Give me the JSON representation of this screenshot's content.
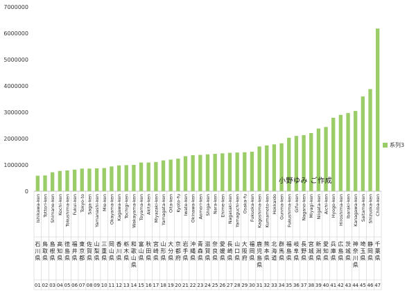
{
  "chart_data": {
    "type": "bar",
    "ylim": [
      0,
      7000000
    ],
    "yticks": [
      0,
      1000000,
      2000000,
      3000000,
      4000000,
      5000000,
      6000000,
      7000000
    ],
    "grid": false,
    "legend_position": "right",
    "series": [
      {
        "name": "系列3",
        "color": "#9acd68",
        "values": [
          590000,
          600000,
          720000,
          770000,
          790000,
          820000,
          860000,
          860000,
          870000,
          880000,
          940000,
          980000,
          990000,
          1000000,
          1090000,
          1090000,
          1110000,
          1170000,
          1200000,
          1240000,
          1330000,
          1370000,
          1380000,
          1400000,
          1420000,
          1440000,
          1460000,
          1470000,
          1480000,
          1500000,
          1700000,
          1740000,
          1780000,
          1820000,
          2030000,
          2100000,
          2130000,
          2210000,
          2380000,
          2440000,
          2790000,
          2900000,
          2970000,
          3050000,
          3600000,
          3880000,
          6180000
        ]
      }
    ],
    "categories": [
      "Ishikawa-ken",
      "Tottori-ken",
      "Shimane-ken",
      "Kochi-ken",
      "Tokushima-ken",
      "Fukui-ken",
      "Tokyo-to",
      "Saga-ken",
      "Yamanashi-ken",
      "Mie-ken",
      "Okayama-ken",
      "Kagawa-ken",
      "Tochigi-ken",
      "Wakayama-ken",
      "Toyama-ken",
      "Akita-ken",
      "Miyazaki-ken",
      "Yamagata-ken",
      "Oita-ken",
      "Kyoto-fu",
      "Iwate-ken",
      "Okinawa-ken",
      "Aomori-ken",
      "Shiga-ken",
      "Nara-ken",
      "Ehime-ken",
      "Nagasaki-ken",
      "Yamaguchi-ken",
      "Osaka-fu",
      "Fukuoka-ken",
      "Kagoshima-ken",
      "Kumamoto-ken",
      "Hokkaido",
      "Gunma-ken",
      "Fukushima-ken",
      "Gifu-ken",
      "Nagano-ken",
      "Miyagi-ken",
      "Niigata-ken",
      "Aichi-ken",
      "Hyogo-ken",
      "Hiroshima-ken",
      "Ibaraki-ken",
      "Kanagawa-ken",
      "Saitama-ken",
      "Shizuoka-ken",
      "Chiba-ken"
    ],
    "kanji": [
      "石川県",
      "鳥取県",
      "島根県",
      "高知県",
      "徳島県",
      "福井県",
      "東京都",
      "佐賀県",
      "山梨県",
      "三重県",
      "岡山県",
      "香川県",
      "栃木県",
      "和歌山県",
      "富山県",
      "秋田県",
      "宮崎県",
      "山形県",
      "大分県",
      "京都府",
      "岩手県",
      "沖縄県",
      "青森県",
      "滋賀県",
      "奈良県",
      "愛媛県",
      "長崎県",
      "山口県",
      "大阪府",
      "福岡県",
      "鹿児島県",
      "熊本県",
      "北海道",
      "群馬県",
      "福島県",
      "岐阜県",
      "長野県",
      "宮城県",
      "新潟県",
      "愛知県",
      "兵庫県",
      "広島県",
      "茨城県",
      "神奈川県",
      "埼玉県",
      "静岡県",
      "千葉県"
    ],
    "numbers": [
      "01",
      "02",
      "03",
      "04",
      "05",
      "06",
      "07",
      "08",
      "09",
      "10",
      "11",
      "12",
      "13",
      "14",
      "15",
      "16",
      "17",
      "18",
      "19",
      "20",
      "21",
      "22",
      "23",
      "24",
      "25",
      "26",
      "27",
      "28",
      "29",
      "30",
      "31",
      "32",
      "33",
      "34",
      "35",
      "36",
      "37",
      "38",
      "39",
      "40",
      "41",
      "42",
      "43",
      "44",
      "45",
      "46",
      "47"
    ],
    "annotation": "小野ゆみ ご作成"
  }
}
